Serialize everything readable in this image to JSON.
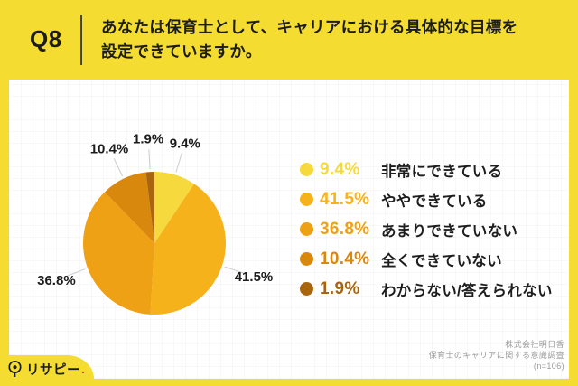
{
  "page": {
    "background_color": "#F4DC30",
    "card_color": "#FFFFFF"
  },
  "header": {
    "question_number": "Q8",
    "question_line1": "あなたは保育士として、キャリアにおける具体的な目標を",
    "question_line2": "設定できていますか。"
  },
  "chart_data": {
    "type": "pie",
    "title": "",
    "start_angle_deg": 0,
    "direction": "clockwise",
    "slice_labels": "outside-with-leader-lines",
    "legend_position": "right",
    "label_color": "#1b1b1b",
    "leader_line_color": "#cccccc",
    "slices": [
      {
        "label": "非常にできている",
        "value": 9.4,
        "display": "9.4%",
        "color": "#F6D93C"
      },
      {
        "label": "ややできている",
        "value": 41.5,
        "display": "41.5%",
        "color": "#F6B21B"
      },
      {
        "label": "あまりできていない",
        "value": 36.8,
        "display": "36.8%",
        "color": "#EEA114"
      },
      {
        "label": "全くできていない",
        "value": 10.4,
        "display": "10.4%",
        "color": "#D9880E"
      },
      {
        "label": "わからない/答えられない",
        "value": 1.9,
        "display": "1.9%",
        "color": "#A9650E"
      }
    ]
  },
  "footer": {
    "credit_line1": "株式会社明日香",
    "credit_line2": "保育士のキャリアに関する意識調査",
    "credit_line3": "(n=106)",
    "logo_text": "リサピー",
    "logo_dot": "."
  }
}
